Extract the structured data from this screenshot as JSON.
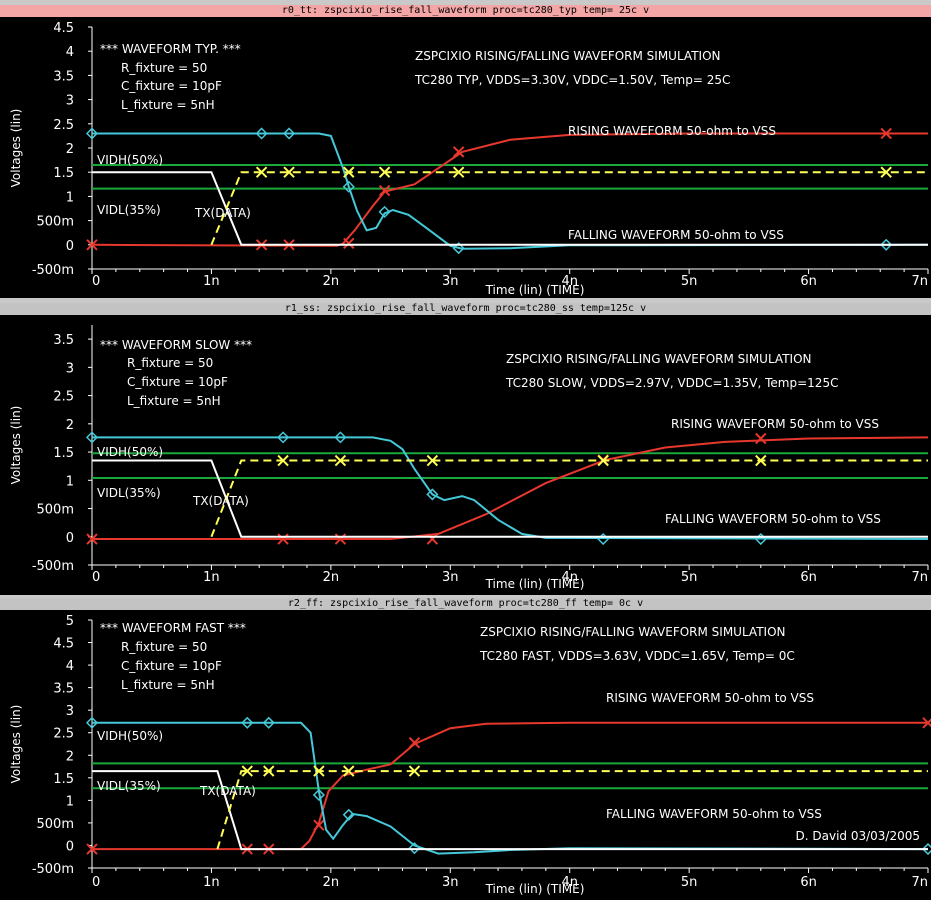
{
  "colors": {
    "background": "#000000",
    "rising": "#e8382e",
    "falling": "#45c8d8",
    "threshold": "#1aa83a",
    "tx": "#ffffff",
    "tx_dashed": "#ffff55"
  },
  "signature": "D. David 03/03/2005",
  "panels": [
    {
      "title_bar": "r0_tt: zspcixio_rise_fall_waveform  proc=tc280_typ  temp= 25c  v",
      "active": true,
      "header": "*** WAVEFORM TYP. ***",
      "params": [
        "R_fixture = 50",
        "C_fixture = 10pF",
        "L_fixture = 5nH"
      ],
      "sim_title": "ZSPCIXIO RISING/FALLING WAVEFORM SIMULATION",
      "sim_conditions": "TC280 TYP, VDDS=3.30V, VDDC=1.50V, Temp= 25C",
      "rising_label": "RISING WAVEFORM     50-ohm to VSS",
      "falling_label": "FALLING WAVEFORM     50-ohm to VSS",
      "vidh_label": "VIDH(50%)",
      "vidl_label": "VIDL(35%)",
      "tx_label": "TX(DATA)",
      "y_axis_label": "Voltages (lin)",
      "x_axis_label": "Time (lin) (TIME)"
    },
    {
      "title_bar": "r1_ss: zspcixio_rise_fall_waveform  proc=tc280_ss  temp=125c  v",
      "active": false,
      "header": "*** WAVEFORM SLOW ***",
      "params": [
        "R_fixture = 50",
        "C_fixture = 10pF",
        "L_fixture = 5nH"
      ],
      "sim_title": "ZSPCIXIO RISING/FALLING WAVEFORM SIMULATION",
      "sim_conditions": "TC280 SLOW, VDDS=2.97V, VDDC=1.35V, Temp=125C",
      "rising_label": "RISING WAVEFORM     50-ohm to VSS",
      "falling_label": "FALLING WAVEFORM     50-ohm to VSS",
      "vidh_label": "VIDH(50%)",
      "vidl_label": "VIDL(35%)",
      "tx_label": "TX(DATA)",
      "y_axis_label": "Voltages (lin)",
      "x_axis_label": "Time (lin) (TIME)"
    },
    {
      "title_bar": "r2_ff: zspcixio_rise_fall_waveform  proc=tc280_ff  temp=  0c  v",
      "active": false,
      "header": "*** WAVEFORM FAST ***",
      "params": [
        "R_fixture = 50",
        "C_fixture = 10pF",
        "L_fixture = 5nH"
      ],
      "sim_title": "ZSPCIXIO RISING/FALLING WAVEFORM SIMULATION",
      "sim_conditions": "TC280 FAST, VDDS=3.63V, VDDC=1.65V, Temp= 0C",
      "rising_label": "RISING WAVEFORM     50-ohm to VSS",
      "falling_label": "FALLING WAVEFORM     50-ohm to VSS",
      "vidh_label": "VIDH(50%)",
      "vidl_label": "VIDL(35%)",
      "tx_label": "TX(DATA)",
      "y_axis_label": "Voltages (lin)",
      "x_axis_label": "Time (lin) (TIME)"
    }
  ],
  "chart_data": [
    {
      "type": "line",
      "ylabel": "Voltages (lin)",
      "xlabel": "Time (lin) (TIME)",
      "x_unit": "ns",
      "xlim": [
        0,
        7
      ],
      "ylim": [
        -0.5,
        4.5
      ],
      "x_ticks": [
        {
          "v": 0,
          "t": "0"
        },
        {
          "v": 1,
          "t": "1n"
        },
        {
          "v": 2,
          "t": "2n"
        },
        {
          "v": 3,
          "t": "3n"
        },
        {
          "v": 4,
          "t": "4n"
        },
        {
          "v": 5,
          "t": "5n"
        },
        {
          "v": 6,
          "t": "6n"
        },
        {
          "v": 7,
          "t": "7n"
        }
      ],
      "y_ticks": [
        {
          "v": -0.5,
          "t": "-500m"
        },
        {
          "v": 0,
          "t": "0"
        },
        {
          "v": 0.5,
          "t": "500m"
        },
        {
          "v": 1,
          "t": "1"
        },
        {
          "v": 1.5,
          "t": "1.5"
        },
        {
          "v": 2,
          "t": "2"
        },
        {
          "v": 2.5,
          "t": "2.5"
        },
        {
          "v": 3,
          "t": "3"
        },
        {
          "v": 3.5,
          "t": "3.5"
        },
        {
          "v": 4,
          "t": "4"
        },
        {
          "v": 4.5,
          "t": "4.5"
        }
      ],
      "thresholds": {
        "vidh": 1.65,
        "vidl": 1.16
      },
      "series": [
        {
          "name": "RISING WAVEFORM",
          "role": "rising",
          "marker": "x",
          "points": [
            [
              0,
              0
            ],
            [
              2.05,
              -0.02
            ],
            [
              2.1,
              0.02
            ],
            [
              2.2,
              0.3
            ],
            [
              2.35,
              0.8
            ],
            [
              2.45,
              1.1
            ],
            [
              2.7,
              1.25
            ],
            [
              2.85,
              1.5
            ],
            [
              3.1,
              1.92
            ],
            [
              3.5,
              2.17
            ],
            [
              4,
              2.27
            ],
            [
              5,
              2.3
            ],
            [
              7,
              2.3
            ]
          ],
          "markers": [
            [
              0,
              0
            ],
            [
              1.42,
              0
            ],
            [
              1.65,
              0
            ],
            [
              2.15,
              0.03
            ],
            [
              2.45,
              1.12
            ],
            [
              3.07,
              1.92
            ],
            [
              6.65,
              2.3
            ]
          ]
        },
        {
          "name": "FALLING WAVEFORM",
          "role": "falling",
          "marker": "diamond",
          "points": [
            [
              0,
              2.3
            ],
            [
              1.9,
              2.3
            ],
            [
              2.0,
              2.25
            ],
            [
              2.1,
              1.6
            ],
            [
              2.15,
              1.2
            ],
            [
              2.22,
              0.7
            ],
            [
              2.3,
              0.3
            ],
            [
              2.38,
              0.35
            ],
            [
              2.45,
              0.65
            ],
            [
              2.52,
              0.72
            ],
            [
              2.65,
              0.62
            ],
            [
              2.8,
              0.35
            ],
            [
              3.0,
              -0.02
            ],
            [
              3.1,
              -0.08
            ],
            [
              3.5,
              -0.07
            ],
            [
              4,
              -0.01
            ],
            [
              7,
              0
            ]
          ],
          "markers": [
            [
              0,
              2.3
            ],
            [
              1.42,
              2.3
            ],
            [
              1.65,
              2.3
            ],
            [
              2.15,
              1.2
            ],
            [
              2.45,
              0.68
            ],
            [
              3.07,
              -0.07
            ],
            [
              6.65,
              0
            ]
          ]
        },
        {
          "name": "TX(DATA)",
          "role": "tx",
          "points": [
            [
              0,
              1.5
            ],
            [
              1.0,
              1.5
            ],
            [
              1.25,
              0
            ],
            [
              7,
              0
            ]
          ]
        },
        {
          "name": "TX(DATA) dashed",
          "role": "tx_dashed",
          "marker": "x",
          "points": [
            [
              1.0,
              0
            ],
            [
              1.25,
              1.5
            ],
            [
              7,
              1.5
            ]
          ],
          "markers": [
            [
              1.42,
              1.5
            ],
            [
              1.65,
              1.5
            ],
            [
              2.15,
              1.5
            ],
            [
              2.45,
              1.5
            ],
            [
              3.07,
              1.5
            ],
            [
              6.65,
              1.5
            ]
          ]
        }
      ]
    },
    {
      "type": "line",
      "ylabel": "Voltages (lin)",
      "xlabel": "Time (lin) (TIME)",
      "x_unit": "ns",
      "xlim": [
        0,
        7
      ],
      "ylim": [
        -0.5,
        3.75
      ],
      "x_ticks": [
        {
          "v": 0,
          "t": "0"
        },
        {
          "v": 1,
          "t": "1n"
        },
        {
          "v": 2,
          "t": "2n"
        },
        {
          "v": 3,
          "t": "3n"
        },
        {
          "v": 4,
          "t": "4n"
        },
        {
          "v": 5,
          "t": "5n"
        },
        {
          "v": 6,
          "t": "6n"
        },
        {
          "v": 7,
          "t": "7n"
        }
      ],
      "y_ticks": [
        {
          "v": -0.5,
          "t": "-500m"
        },
        {
          "v": 0,
          "t": "0"
        },
        {
          "v": 0.5,
          "t": "500m"
        },
        {
          "v": 1,
          "t": "1"
        },
        {
          "v": 1.5,
          "t": "1.5"
        },
        {
          "v": 2,
          "t": "2"
        },
        {
          "v": 2.5,
          "t": "2.5"
        },
        {
          "v": 3,
          "t": "3"
        },
        {
          "v": 3.5,
          "t": "3.5"
        }
      ],
      "thresholds": {
        "vidh": 1.48,
        "vidl": 1.04
      },
      "series": [
        {
          "name": "RISING WAVEFORM",
          "role": "rising",
          "marker": "x",
          "points": [
            [
              0,
              -0.04
            ],
            [
              2.5,
              -0.04
            ],
            [
              2.9,
              0.05
            ],
            [
              3.3,
              0.4
            ],
            [
              3.8,
              0.95
            ],
            [
              4.3,
              1.36
            ],
            [
              4.8,
              1.58
            ],
            [
              5.3,
              1.68
            ],
            [
              6,
              1.74
            ],
            [
              7,
              1.76
            ]
          ],
          "markers": [
            [
              0,
              -0.04
            ],
            [
              1.6,
              -0.04
            ],
            [
              2.08,
              -0.04
            ],
            [
              2.85,
              -0.04
            ],
            [
              4.28,
              1.36
            ],
            [
              5.6,
              1.74
            ]
          ]
        },
        {
          "name": "FALLING WAVEFORM",
          "role": "falling",
          "marker": "diamond",
          "points": [
            [
              0,
              1.76
            ],
            [
              2.35,
              1.76
            ],
            [
              2.5,
              1.7
            ],
            [
              2.6,
              1.55
            ],
            [
              2.7,
              1.2
            ],
            [
              2.85,
              0.75
            ],
            [
              2.95,
              0.65
            ],
            [
              3.1,
              0.72
            ],
            [
              3.2,
              0.65
            ],
            [
              3.4,
              0.3
            ],
            [
              3.6,
              0.05
            ],
            [
              3.8,
              -0.02
            ],
            [
              7,
              -0.04
            ]
          ],
          "markers": [
            [
              0,
              1.76
            ],
            [
              1.6,
              1.76
            ],
            [
              2.08,
              1.76
            ],
            [
              2.85,
              0.75
            ],
            [
              4.28,
              -0.04
            ],
            [
              5.6,
              -0.04
            ]
          ]
        },
        {
          "name": "TX(DATA)",
          "role": "tx",
          "points": [
            [
              0,
              1.35
            ],
            [
              1.0,
              1.35
            ],
            [
              1.25,
              0
            ],
            [
              7,
              0
            ]
          ]
        },
        {
          "name": "TX(DATA) dashed",
          "role": "tx_dashed",
          "marker": "x",
          "points": [
            [
              1.0,
              0
            ],
            [
              1.25,
              1.35
            ],
            [
              7,
              1.35
            ]
          ],
          "markers": [
            [
              1.6,
              1.35
            ],
            [
              2.08,
              1.35
            ],
            [
              2.85,
              1.35
            ],
            [
              4.28,
              1.35
            ],
            [
              5.6,
              1.35
            ]
          ]
        }
      ]
    },
    {
      "type": "line",
      "ylabel": "Voltages (lin)",
      "xlabel": "Time (lin) (TIME)",
      "x_unit": "ns",
      "xlim": [
        0,
        7
      ],
      "ylim": [
        -0.5,
        5
      ],
      "x_ticks": [
        {
          "v": 0,
          "t": "0"
        },
        {
          "v": 1,
          "t": "1n"
        },
        {
          "v": 2,
          "t": "2n"
        },
        {
          "v": 3,
          "t": "3n"
        },
        {
          "v": 4,
          "t": "4n"
        },
        {
          "v": 5,
          "t": "5n"
        },
        {
          "v": 6,
          "t": "6n"
        },
        {
          "v": 7,
          "t": "7n"
        }
      ],
      "y_ticks": [
        {
          "v": -0.5,
          "t": "-500m"
        },
        {
          "v": 0,
          "t": "0"
        },
        {
          "v": 0.5,
          "t": "500m"
        },
        {
          "v": 1,
          "t": "1"
        },
        {
          "v": 1.5,
          "t": "1.5"
        },
        {
          "v": 2,
          "t": "2"
        },
        {
          "v": 2.5,
          "t": "2.5"
        },
        {
          "v": 3,
          "t": "3"
        },
        {
          "v": 3.5,
          "t": "3.5"
        },
        {
          "v": 4,
          "t": "4"
        },
        {
          "v": 4.5,
          "t": "4.5"
        },
        {
          "v": 5,
          "t": "5"
        }
      ],
      "thresholds": {
        "vidh": 1.82,
        "vidl": 1.27
      },
      "series": [
        {
          "name": "RISING WAVEFORM",
          "role": "rising",
          "marker": "x",
          "points": [
            [
              0,
              -0.08
            ],
            [
              1.75,
              -0.08
            ],
            [
              1.82,
              0.1
            ],
            [
              1.9,
              0.5
            ],
            [
              1.98,
              1.2
            ],
            [
              2.1,
              1.55
            ],
            [
              2.3,
              1.68
            ],
            [
              2.5,
              1.8
            ],
            [
              2.7,
              2.25
            ],
            [
              3.0,
              2.6
            ],
            [
              3.3,
              2.7
            ],
            [
              4,
              2.72
            ],
            [
              7,
              2.72
            ]
          ],
          "markers": [
            [
              0,
              -0.08
            ],
            [
              1.3,
              -0.08
            ],
            [
              1.48,
              -0.08
            ],
            [
              1.9,
              0.45
            ],
            [
              2.15,
              1.65
            ],
            [
              2.7,
              2.28
            ],
            [
              7,
              2.72
            ]
          ]
        },
        {
          "name": "FALLING WAVEFORM",
          "role": "falling",
          "marker": "diamond",
          "points": [
            [
              0,
              2.72
            ],
            [
              1.75,
              2.72
            ],
            [
              1.83,
              2.5
            ],
            [
              1.9,
              1.2
            ],
            [
              1.96,
              0.35
            ],
            [
              2.02,
              0.15
            ],
            [
              2.1,
              0.45
            ],
            [
              2.18,
              0.7
            ],
            [
              2.3,
              0.65
            ],
            [
              2.5,
              0.42
            ],
            [
              2.7,
              0.0
            ],
            [
              2.9,
              -0.18
            ],
            [
              3.2,
              -0.15
            ],
            [
              3.5,
              -0.1
            ],
            [
              4,
              -0.06
            ],
            [
              7,
              -0.08
            ]
          ],
          "markers": [
            [
              0,
              2.72
            ],
            [
              1.3,
              2.72
            ],
            [
              1.48,
              2.72
            ],
            [
              1.9,
              1.12
            ],
            [
              2.15,
              0.68
            ],
            [
              2.7,
              -0.06
            ],
            [
              7,
              -0.08
            ]
          ]
        },
        {
          "name": "TX(DATA)",
          "role": "tx",
          "points": [
            [
              0,
              1.65
            ],
            [
              1.05,
              1.65
            ],
            [
              1.25,
              -0.08
            ],
            [
              7,
              -0.08
            ]
          ]
        },
        {
          "name": "TX(DATA) dashed",
          "role": "tx_dashed",
          "marker": "x",
          "points": [
            [
              1.05,
              -0.08
            ],
            [
              1.25,
              1.65
            ],
            [
              7,
              1.65
            ]
          ],
          "markers": [
            [
              1.3,
              1.65
            ],
            [
              1.48,
              1.65
            ],
            [
              1.9,
              1.65
            ],
            [
              2.15,
              1.65
            ],
            [
              2.7,
              1.65
            ]
          ]
        }
      ]
    }
  ]
}
